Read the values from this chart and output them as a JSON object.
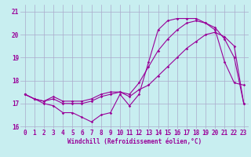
{
  "bg_color": "#c8eef0",
  "grid_color": "#aaaacc",
  "line_color": "#990099",
  "hours": [
    0,
    1,
    2,
    3,
    4,
    5,
    6,
    7,
    8,
    9,
    10,
    11,
    12,
    13,
    14,
    15,
    16,
    17,
    18,
    19,
    20,
    21,
    22,
    23
  ],
  "series1": [
    17.4,
    17.2,
    17.0,
    16.9,
    16.6,
    16.6,
    16.4,
    16.2,
    16.5,
    16.6,
    17.4,
    16.9,
    17.4,
    18.8,
    20.2,
    20.6,
    20.7,
    20.7,
    20.7,
    20.5,
    20.2,
    18.8,
    17.9,
    17.8
  ],
  "series2": [
    17.4,
    17.2,
    17.1,
    17.2,
    17.0,
    17.0,
    17.0,
    17.1,
    17.3,
    17.4,
    17.5,
    17.4,
    17.9,
    18.6,
    19.3,
    19.8,
    20.2,
    20.5,
    20.6,
    20.5,
    20.3,
    19.8,
    19.0,
    17.0
  ],
  "series3": [
    17.4,
    17.2,
    17.1,
    17.3,
    17.1,
    17.1,
    17.1,
    17.2,
    17.4,
    17.5,
    17.5,
    17.3,
    17.6,
    17.8,
    18.2,
    18.6,
    19.0,
    19.4,
    19.7,
    20.0,
    20.1,
    19.9,
    19.5,
    17.0
  ],
  "ylim": [
    15.9,
    21.3
  ],
  "yticks": [
    16,
    17,
    18,
    19,
    20,
    21
  ],
  "xlim": [
    -0.5,
    23.5
  ],
  "xticks": [
    0,
    1,
    2,
    3,
    4,
    5,
    6,
    7,
    8,
    9,
    10,
    11,
    12,
    13,
    14,
    15,
    16,
    17,
    18,
    19,
    20,
    21,
    22,
    23
  ],
  "xlabel": "Windchill (Refroidissement éolien,°C)",
  "xlabel_fontsize": 5.5,
  "tick_fontsize": 5.5,
  "marker_size": 1.8,
  "line_width": 0.8
}
